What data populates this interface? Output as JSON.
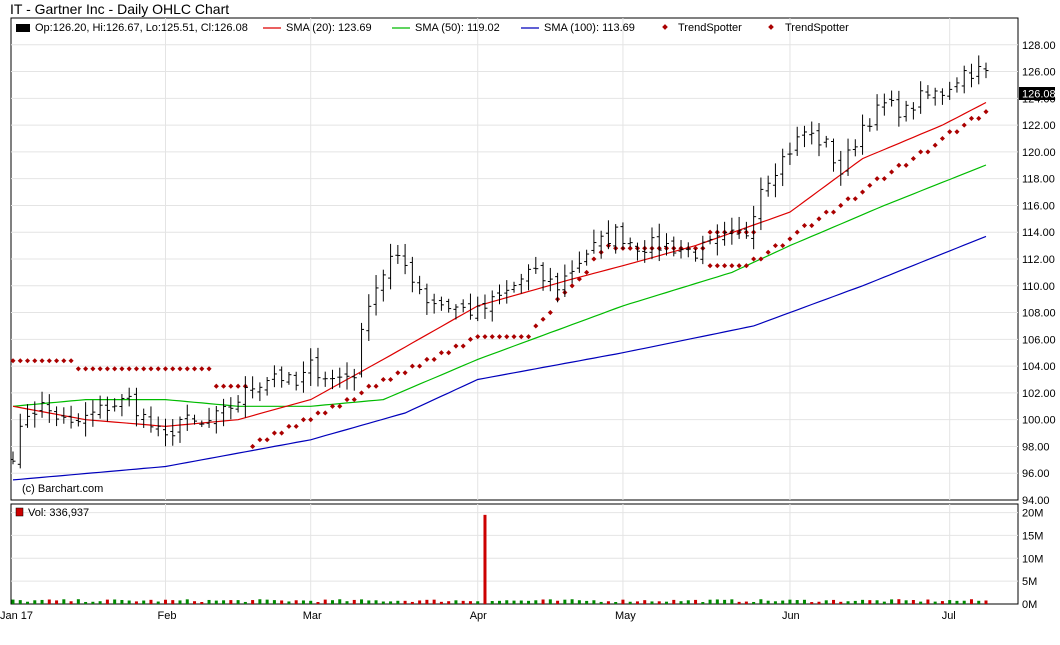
{
  "title": "IT - Gartner Inc - Daily OHLC Chart",
  "legend": {
    "ohlc": "Op:126.20, Hi:126.67, Lo:125.51, Cl:126.08",
    "sma20": "SMA (20): 123.69",
    "sma50": "SMA (50): 119.02",
    "sma100": "SMA (100): 113.69",
    "trendspotter_up": "TrendSpotter",
    "trendspotter_down": "TrendSpotter"
  },
  "copyright": "(c) Barchart.com",
  "last_price_label": "126.08",
  "volume_label": "Vol: 336,937",
  "colors": {
    "sma20": "#dd0000",
    "sma50": "#00bb00",
    "sma100": "#0000bb",
    "trendspotter": "#aa0000",
    "vol_up": "#008800",
    "vol_down": "#cc0000",
    "volume_swatch": "#cc0000"
  },
  "chart_data": {
    "type": "ohlc",
    "price_axis": {
      "ylim": [
        94,
        130
      ],
      "ticks": [
        94,
        96,
        98,
        100,
        102,
        104,
        106,
        108,
        110,
        112,
        114,
        116,
        118,
        120,
        122,
        124,
        126,
        128
      ],
      "tick_labels": [
        "94.00",
        "96.00",
        "98.00",
        "100.00",
        "102.00",
        "104.00",
        "106.00",
        "108.00",
        "110.00",
        "112.00",
        "114.00",
        "116.00",
        "118.00",
        "120.00",
        "122.00",
        "124.00",
        "126.00",
        "128.00"
      ]
    },
    "volume_axis": {
      "ylim": [
        0,
        21000000
      ],
      "ticks": [
        0,
        5000000,
        10000000,
        15000000,
        20000000
      ],
      "tick_labels": [
        "0M",
        "5M",
        "10M",
        "15M",
        "20M"
      ]
    },
    "x_axis": {
      "start": "2017-01-03",
      "end": "2017-07-10",
      "labels": [
        {
          "date": "2017-01-03",
          "label": "Jan 17"
        },
        {
          "date": "2017-02-01",
          "label": "Feb"
        },
        {
          "date": "2017-03-01",
          "label": "Mar"
        },
        {
          "date": "2017-04-03",
          "label": "Apr"
        },
        {
          "date": "2017-05-01",
          "label": "May"
        },
        {
          "date": "2017-06-01",
          "label": "Jun"
        },
        {
          "date": "2017-07-03",
          "label": "Jul"
        }
      ]
    },
    "close_anchors": [
      [
        "2017-01-03",
        97.5
      ],
      [
        "2017-01-05",
        100.5
      ],
      [
        "2017-01-09",
        101.0
      ],
      [
        "2017-01-13",
        99.5
      ],
      [
        "2017-01-20",
        101.0
      ],
      [
        "2017-01-25",
        101.5
      ],
      [
        "2017-01-30",
        99.5
      ],
      [
        "2017-02-01",
        98.5
      ],
      [
        "2017-02-03",
        100.0
      ],
      [
        "2017-02-08",
        99.5
      ],
      [
        "2017-02-13",
        100.5
      ],
      [
        "2017-02-17",
        102.5
      ],
      [
        "2017-02-22",
        103.5
      ],
      [
        "2017-02-27",
        102.5
      ],
      [
        "2017-03-01",
        104.0
      ],
      [
        "2017-03-06",
        103.0
      ],
      [
        "2017-03-09",
        103.5
      ],
      [
        "2017-03-13",
        109.0
      ],
      [
        "2017-03-16",
        112.0
      ],
      [
        "2017-03-20",
        111.5
      ],
      [
        "2017-03-23",
        109.0
      ],
      [
        "2017-03-28",
        108.5
      ],
      [
        "2017-04-03",
        108.0
      ],
      [
        "2017-04-07",
        109.5
      ],
      [
        "2017-04-12",
        111.0
      ],
      [
        "2017-04-18",
        110.0
      ],
      [
        "2017-04-24",
        112.5
      ],
      [
        "2017-04-28",
        114.0
      ],
      [
        "2017-05-03",
        113.0
      ],
      [
        "2017-05-09",
        113.0
      ],
      [
        "2017-05-15",
        112.5
      ],
      [
        "2017-05-19",
        113.5
      ],
      [
        "2017-05-24",
        114.0
      ],
      [
        "2017-05-26",
        117.5
      ],
      [
        "2017-05-31",
        119.5
      ],
      [
        "2017-06-05",
        121.5
      ],
      [
        "2017-06-08",
        120.5
      ],
      [
        "2017-06-12",
        118.5
      ],
      [
        "2017-06-15",
        122.0
      ],
      [
        "2017-06-20",
        123.5
      ],
      [
        "2017-06-23",
        123.0
      ],
      [
        "2017-06-27",
        124.0
      ],
      [
        "2017-06-30",
        124.5
      ],
      [
        "2017-07-05",
        126.0
      ],
      [
        "2017-07-10",
        126.08
      ]
    ],
    "last_bar": {
      "open": 126.2,
      "high": 126.67,
      "low": 125.51,
      "close": 126.08
    },
    "sma20": [
      [
        "2017-01-03",
        101.0
      ],
      [
        "2017-01-17",
        100.0
      ],
      [
        "2017-02-01",
        99.5
      ],
      [
        "2017-02-15",
        100.0
      ],
      [
        "2017-03-01",
        101.5
      ],
      [
        "2017-03-15",
        104.5
      ],
      [
        "2017-04-03",
        108.5
      ],
      [
        "2017-04-20",
        110.5
      ],
      [
        "2017-05-01",
        111.5
      ],
      [
        "2017-05-15",
        113.0
      ],
      [
        "2017-06-01",
        115.5
      ],
      [
        "2017-06-15",
        119.5
      ],
      [
        "2017-06-30",
        122.0
      ],
      [
        "2017-07-10",
        123.69
      ]
    ],
    "sma50": [
      [
        "2017-01-03",
        101.0
      ],
      [
        "2017-01-17",
        101.5
      ],
      [
        "2017-02-01",
        101.5
      ],
      [
        "2017-02-15",
        101.0
      ],
      [
        "2017-03-01",
        101.0
      ],
      [
        "2017-03-15",
        101.5
      ],
      [
        "2017-04-03",
        104.5
      ],
      [
        "2017-05-01",
        108.5
      ],
      [
        "2017-05-20",
        111.0
      ],
      [
        "2017-06-01",
        113.0
      ],
      [
        "2017-06-20",
        116.0
      ],
      [
        "2017-07-10",
        119.02
      ]
    ],
    "sma100": [
      [
        "2017-01-03",
        95.5
      ],
      [
        "2017-02-01",
        96.5
      ],
      [
        "2017-03-01",
        98.5
      ],
      [
        "2017-03-20",
        100.5
      ],
      [
        "2017-04-03",
        103.0
      ],
      [
        "2017-05-01",
        105.0
      ],
      [
        "2017-05-25",
        107.0
      ],
      [
        "2017-06-15",
        110.0
      ],
      [
        "2017-07-10",
        113.69
      ]
    ],
    "trendspotter": [
      {
        "from": "2017-01-03",
        "to": "2017-01-13",
        "value": 104.4
      },
      {
        "from": "2017-01-16",
        "to": "2017-02-09",
        "value": 103.8
      },
      {
        "from": "2017-02-10",
        "to": "2017-02-16",
        "value": 102.5
      },
      {
        "from": "2017-02-17",
        "to": "2017-03-31",
        "value": 104.0,
        "rise_from": 98.0,
        "rise_to": 106.0,
        "rising": true
      },
      {
        "from": "2017-04-03",
        "to": "2017-04-12",
        "value": 106.2
      },
      {
        "from": "2017-04-13",
        "to": "2017-04-27",
        "rise_from": 107.0,
        "rise_to": 113.0,
        "rising": true
      },
      {
        "from": "2017-04-28",
        "to": "2017-05-16",
        "value": 112.8
      },
      {
        "from": "2017-05-17",
        "to": "2017-05-25",
        "value": 114.0
      },
      {
        "from": "2017-05-17",
        "to": "2017-05-23",
        "value": 111.5
      },
      {
        "from": "2017-05-24",
        "to": "2017-07-10",
        "rise_from": 111.5,
        "rise_to": 123.0,
        "rising": true
      }
    ],
    "volume_spike": {
      "date": "2017-04-04",
      "value": 19500000
    },
    "volume_typical": 700000
  }
}
